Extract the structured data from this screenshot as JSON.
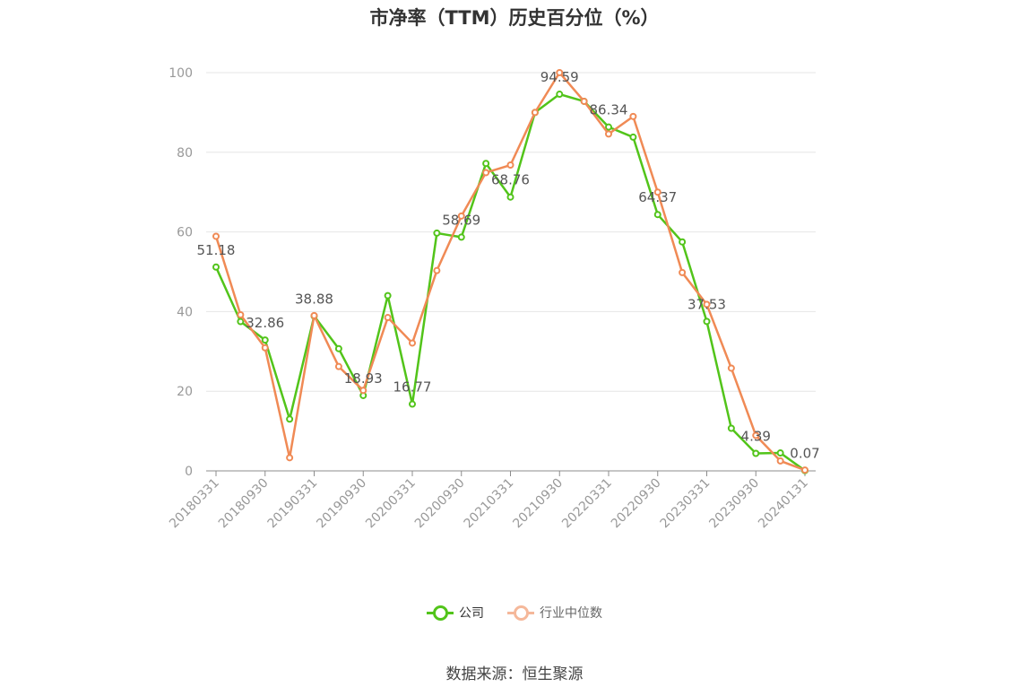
{
  "chart_data": {
    "type": "line",
    "title": "市净率（TTM）历史百分位（%）",
    "ylim": [
      0,
      100
    ],
    "yticks": [
      0,
      20,
      40,
      60,
      80,
      100
    ],
    "grid": true,
    "legend_position": "bottom",
    "x": [
      "20180331",
      "20180630",
      "20180930",
      "20181231",
      "20190331",
      "20190630",
      "20190930",
      "20191231",
      "20200331",
      "20200630",
      "20200930",
      "20201231",
      "20210331",
      "20210630",
      "20210930",
      "20211231",
      "20220331",
      "20220630",
      "20220930",
      "20221231",
      "20230331",
      "20230630",
      "20230930",
      "20231231",
      "20240131"
    ],
    "xticklabels": [
      "20180331",
      "20180930",
      "20190331",
      "20190930",
      "20200331",
      "20200930",
      "20210331",
      "20210930",
      "20220331",
      "20220930",
      "20230331",
      "20230930",
      "20240131"
    ],
    "series": [
      {
        "name": "公司",
        "color": "#52c41a",
        "values": [
          51.18,
          37.5,
          32.86,
          13.0,
          38.88,
          30.7,
          18.93,
          44.0,
          16.77,
          59.7,
          58.69,
          77.2,
          68.76,
          90.0,
          94.59,
          92.8,
          86.34,
          83.8,
          64.37,
          57.5,
          37.53,
          10.7,
          4.39,
          4.5,
          0.07
        ],
        "labels": {
          "0": "51.18",
          "2": "32.86",
          "4": "38.88",
          "6": "18.93",
          "8": "16.77",
          "10": "58.69",
          "12": "68.76",
          "14": "94.59",
          "16": "86.34",
          "18": "64.37",
          "20": "37.53",
          "22": "4.39",
          "24": "0.07"
        }
      },
      {
        "name": "行业中位数",
        "color": "#f08a55",
        "values": [
          58.9,
          39.2,
          30.9,
          3.3,
          39.0,
          26.2,
          20.2,
          38.5,
          32.1,
          50.3,
          64.0,
          74.9,
          76.8,
          90.0,
          100.0,
          92.8,
          84.6,
          89.0,
          70.0,
          49.8,
          41.8,
          25.8,
          8.9,
          2.5,
          0.2
        ]
      }
    ]
  },
  "legend": {
    "company_label": "公司",
    "industry_label": "行业中位数"
  },
  "source": "数据来源：恒生聚源"
}
